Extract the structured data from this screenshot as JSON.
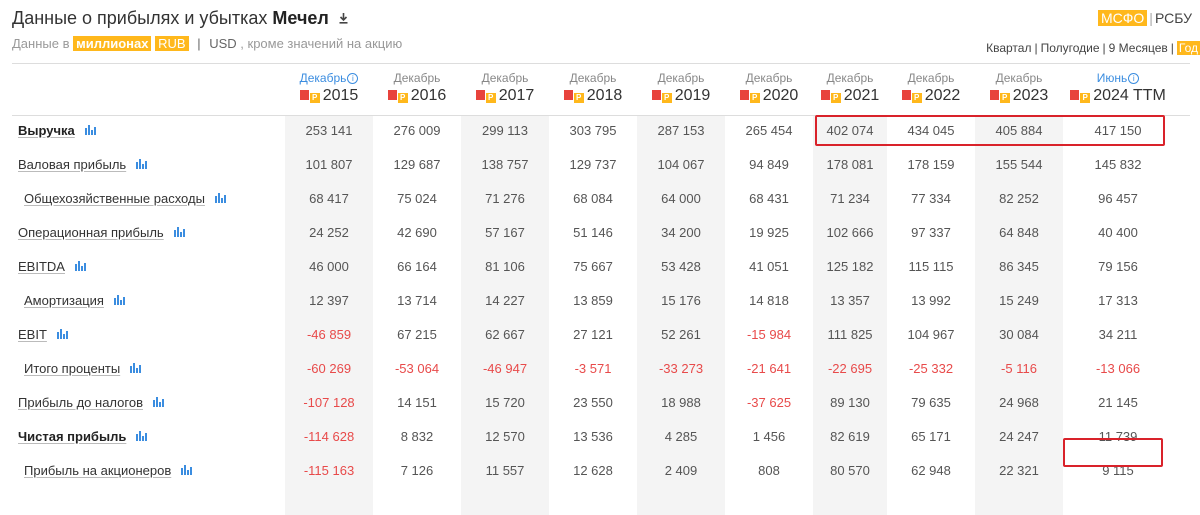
{
  "header": {
    "title_prefix": "Данные о прибылях и убытках",
    "company": "Мечел",
    "download_icon": "download-icon"
  },
  "units_line": {
    "prefix": "Данные в",
    "units": "миллионах",
    "currencies": [
      "RUB",
      "USD"
    ],
    "selected_currency": "RUB",
    "separator": "|",
    "suffix": ", кроме значений на акцию"
  },
  "standards": {
    "items": [
      "МСФО",
      "РСБУ"
    ],
    "selected": "МСФО",
    "separator": "|"
  },
  "periods": {
    "items": [
      "Квартал",
      "Полугодие",
      "9 Месяцев",
      "Год"
    ],
    "selected": "Год",
    "separator": "|"
  },
  "colors": {
    "accent": "#ffb81c",
    "negative": "#e84a4a",
    "highlight": "#d9222a",
    "link": "#3b8de0",
    "pdf": "#e8433c"
  },
  "report_badge": "Р",
  "columns": [
    {
      "month": "Декабрь",
      "year": "2015",
      "info": true
    },
    {
      "month": "Декабрь",
      "year": "2016",
      "info": false
    },
    {
      "month": "Декабрь",
      "year": "2017",
      "info": false
    },
    {
      "month": "Декабрь",
      "year": "2018",
      "info": false
    },
    {
      "month": "Декабрь",
      "year": "2019",
      "info": false
    },
    {
      "month": "Декабрь",
      "year": "2020",
      "info": false
    },
    {
      "month": "Декабрь",
      "year": "2021",
      "info": false
    },
    {
      "month": "Декабрь",
      "year": "2022",
      "info": false
    },
    {
      "month": "Декабрь",
      "year": "2023",
      "info": false
    },
    {
      "month": "Июнь",
      "year": "2024 TTM",
      "info": true
    }
  ],
  "rows": [
    {
      "label": "Выручка",
      "bold": true,
      "indent": false,
      "values": [
        "253 141",
        "276 009",
        "299 113",
        "303 795",
        "287 153",
        "265 454",
        "402 074",
        "434 045",
        "405 884",
        "417 150"
      ]
    },
    {
      "label": "Валовая прибыль",
      "bold": false,
      "indent": false,
      "values": [
        "101 807",
        "129 687",
        "138 757",
        "129 737",
        "104 067",
        "94 849",
        "178 081",
        "178 159",
        "155 544",
        "145 832"
      ]
    },
    {
      "label": "Общехозяйственные расходы",
      "bold": false,
      "indent": true,
      "values": [
        "68 417",
        "75 024",
        "71 276",
        "68 084",
        "64 000",
        "68 431",
        "71 234",
        "77 334",
        "82 252",
        "96 457"
      ]
    },
    {
      "label": "Операционная прибыль",
      "bold": false,
      "indent": false,
      "values": [
        "24 252",
        "42 690",
        "57 167",
        "51 146",
        "34 200",
        "19 925",
        "102 666",
        "97 337",
        "64 848",
        "40 400"
      ]
    },
    {
      "label": "EBITDA",
      "bold": false,
      "indent": false,
      "values": [
        "46 000",
        "66 164",
        "81 106",
        "75 667",
        "53 428",
        "41 051",
        "125 182",
        "115 115",
        "86 345",
        "79 156"
      ]
    },
    {
      "label": "Амортизация",
      "bold": false,
      "indent": true,
      "values": [
        "12 397",
        "13 714",
        "14 227",
        "13 859",
        "15 176",
        "14 818",
        "13 357",
        "13 992",
        "15 249",
        "17 313"
      ]
    },
    {
      "label": "EBIT",
      "bold": false,
      "indent": false,
      "values": [
        "-46 859",
        "67 215",
        "62 667",
        "27 121",
        "52 261",
        "-15 984",
        "111 825",
        "104 967",
        "30 084",
        "34 211"
      ]
    },
    {
      "label": "Итого проценты",
      "bold": false,
      "indent": true,
      "values": [
        "-60 269",
        "-53 064",
        "-46 947",
        "-3 571",
        "-33 273",
        "-21 641",
        "-22 695",
        "-25 332",
        "-5 116",
        "-13 066"
      ]
    },
    {
      "label": "Прибыль до налогов",
      "bold": false,
      "indent": false,
      "values": [
        "-107 128",
        "14 151",
        "15 720",
        "23 550",
        "18 988",
        "-37 625",
        "89 130",
        "79 635",
        "24 968",
        "21 145"
      ]
    },
    {
      "label": "Чистая прибыль",
      "bold": true,
      "indent": false,
      "values": [
        "-114 628",
        "8 832",
        "12 570",
        "13 536",
        "4 285",
        "1 456",
        "82 619",
        "65 171",
        "24 247",
        "11 739"
      ]
    },
    {
      "label": "Прибыль на акционеров",
      "bold": false,
      "indent": true,
      "values": [
        "-115 163",
        "7 126",
        "11 557",
        "12 628",
        "2 409",
        "808",
        "80 570",
        "62 948",
        "22 321",
        "9 115"
      ]
    }
  ]
}
